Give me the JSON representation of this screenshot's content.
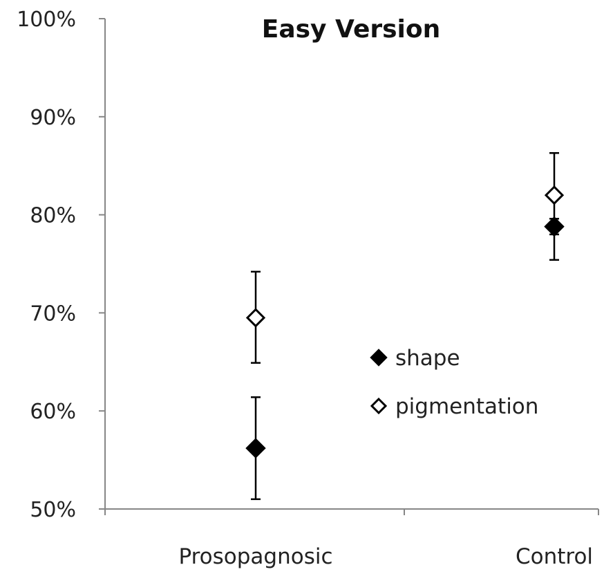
{
  "chart_data": {
    "type": "scatter",
    "title": "Easy Version",
    "xlabel": "",
    "ylabel": "",
    "categories": [
      "Prosopagnosic",
      "Control"
    ],
    "ylim": [
      50,
      100
    ],
    "yticks": [
      50,
      60,
      70,
      80,
      90,
      100
    ],
    "ytick_labels": [
      "50%",
      "60%",
      "70%",
      "80%",
      "90%",
      "100%"
    ],
    "grid": false,
    "legend_placement": "center-right",
    "series": [
      {
        "name": "shape",
        "marker": "filled-diamond",
        "color": "#000000",
        "values": [
          56.2,
          78.8
        ],
        "error_low": [
          51.0,
          78.0
        ],
        "error_high": [
          61.4,
          79.6
        ]
      },
      {
        "name": "pigmentation",
        "marker": "hollow-diamond",
        "color": "#000000",
        "values": [
          69.5,
          82.0
        ],
        "error_low": [
          64.9,
          75.4
        ],
        "error_high": [
          74.2,
          86.3
        ]
      }
    ]
  }
}
